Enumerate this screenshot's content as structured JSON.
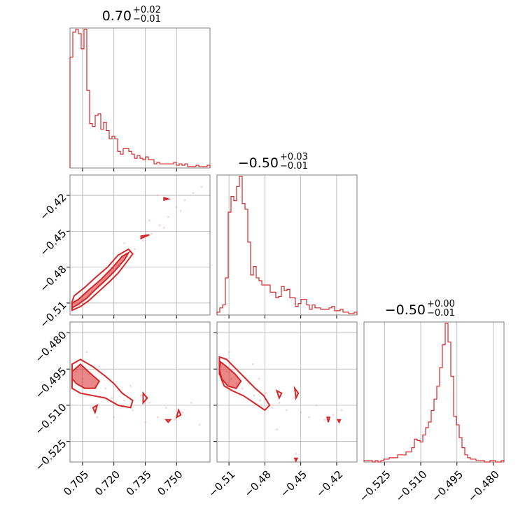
{
  "colors": {
    "accent": "#d62728",
    "grid": "#b0b0b0",
    "frame": "#808080",
    "sample": "#e9a3a8"
  },
  "chart_data": {
    "type": "corner",
    "parameters": [
      {
        "title_value": "0.70",
        "title_plus": "+0.02",
        "title_minus": "−0.01",
        "range": [
          0.699,
          0.766
        ],
        "ticks": [
          0.705,
          0.72,
          0.735,
          0.75
        ],
        "tick_labels": [
          "0.705",
          "0.720",
          "0.735",
          "0.750"
        ]
      },
      {
        "title_value": "−0.50",
        "title_plus": "+0.03",
        "title_minus": "−0.01",
        "range": [
          -0.52,
          -0.403
        ],
        "ticks": [
          -0.51,
          -0.48,
          -0.45,
          -0.42
        ],
        "tick_labels": [
          "−0.51",
          "−0.48",
          "−0.45",
          "−0.42"
        ]
      },
      {
        "title_value": "−0.50",
        "title_plus": "+0.00",
        "title_minus": "−0.01",
        "range": [
          -0.5335,
          -0.4755
        ],
        "ticks": [
          -0.525,
          -0.51,
          -0.495,
          -0.48
        ],
        "tick_labels": [
          "−0.525",
          "−0.510",
          "−0.495",
          "−0.480"
        ]
      }
    ],
    "histograms": [
      {
        "param": 0,
        "edges": [
          0.699,
          0.766
        ],
        "counts": [
          80,
          98,
          100,
          97,
          86,
          100,
          56,
          32,
          30,
          38,
          39,
          28,
          33,
          27,
          21,
          23,
          21,
          12,
          10,
          14,
          14,
          12,
          10,
          7,
          9,
          7,
          6,
          8,
          6,
          6,
          3,
          4,
          3,
          3,
          3,
          3,
          3,
          4,
          2,
          3,
          2,
          3,
          1,
          1,
          1,
          2,
          1,
          1,
          1,
          2
        ]
      },
      {
        "param": 1,
        "edges": [
          -0.52,
          -0.403
        ],
        "counts": [
          2,
          5,
          7,
          26,
          72,
          83,
          80,
          90,
          97,
          78,
          74,
          51,
          28,
          34,
          26,
          24,
          21,
          21,
          21,
          16,
          16,
          12,
          13,
          20,
          17,
          18,
          12,
          12,
          6,
          8,
          11,
          11,
          7,
          4,
          7,
          5,
          5,
          4,
          4,
          4,
          5,
          6,
          3,
          3,
          4,
          2,
          2,
          1,
          1,
          2
        ]
      },
      {
        "param": 2,
        "edges": [
          -0.5335,
          -0.4755
        ],
        "counts": [
          1,
          1,
          1,
          0,
          1,
          0,
          1,
          2,
          2,
          3,
          3,
          3,
          5,
          5,
          5,
          7,
          7,
          10,
          16,
          15,
          14,
          19,
          24,
          28,
          36,
          44,
          53,
          66,
          82,
          97,
          84,
          60,
          32,
          26,
          17,
          10,
          5,
          3,
          2,
          2,
          1,
          1,
          1,
          0,
          0,
          1,
          1,
          0,
          0,
          1
        ]
      }
    ],
    "scatter_pairs": [
      {
        "x": 0,
        "y": 1,
        "points": [
          [
            0.703,
            -0.512
          ],
          [
            0.705,
            -0.508
          ],
          [
            0.708,
            -0.503
          ],
          [
            0.71,
            -0.5
          ],
          [
            0.713,
            -0.495
          ],
          [
            0.716,
            -0.49
          ],
          [
            0.719,
            -0.484
          ],
          [
            0.722,
            -0.478
          ],
          [
            0.726,
            -0.471
          ],
          [
            0.73,
            -0.465
          ],
          [
            0.734,
            -0.458
          ],
          [
            0.738,
            -0.452
          ],
          [
            0.742,
            -0.445
          ],
          [
            0.746,
            -0.438
          ],
          [
            0.75,
            -0.43
          ],
          [
            0.754,
            -0.424
          ],
          [
            0.758,
            -0.418
          ],
          [
            0.762,
            -0.413
          ],
          [
            0.741,
            -0.42
          ],
          [
            0.725,
            -0.46
          ],
          [
            0.715,
            -0.484
          ],
          [
            0.7,
            -0.515
          ],
          [
            0.737,
            -0.441
          ],
          [
            0.744,
            -0.447
          ],
          [
            0.752,
            -0.433
          ]
        ]
      },
      {
        "x": 0,
        "y": 2,
        "points": [
          [
            0.702,
            -0.496
          ],
          [
            0.705,
            -0.499
          ],
          [
            0.708,
            -0.497
          ],
          [
            0.711,
            -0.502
          ],
          [
            0.713,
            -0.494
          ],
          [
            0.716,
            -0.503
          ],
          [
            0.719,
            -0.507
          ],
          [
            0.722,
            -0.504
          ],
          [
            0.725,
            -0.508
          ],
          [
            0.729,
            -0.512
          ],
          [
            0.733,
            -0.506
          ],
          [
            0.737,
            -0.509
          ],
          [
            0.741,
            -0.515
          ],
          [
            0.745,
            -0.511
          ],
          [
            0.749,
            -0.516
          ],
          [
            0.753,
            -0.513
          ],
          [
            0.757,
            -0.509
          ],
          [
            0.761,
            -0.518
          ],
          [
            0.707,
            -0.488
          ],
          [
            0.712,
            -0.515
          ],
          [
            0.72,
            -0.515
          ],
          [
            0.728,
            -0.502
          ],
          [
            0.735,
            -0.517
          ]
        ]
      },
      {
        "x": 1,
        "y": 2,
        "points": [
          [
            -0.515,
            -0.493
          ],
          [
            -0.512,
            -0.496
          ],
          [
            -0.508,
            -0.499
          ],
          [
            -0.504,
            -0.501
          ],
          [
            -0.499,
            -0.503
          ],
          [
            -0.494,
            -0.501
          ],
          [
            -0.489,
            -0.506
          ],
          [
            -0.484,
            -0.508
          ],
          [
            -0.479,
            -0.505
          ],
          [
            -0.474,
            -0.511
          ],
          [
            -0.468,
            -0.509
          ],
          [
            -0.462,
            -0.512
          ],
          [
            -0.456,
            -0.507
          ],
          [
            -0.45,
            -0.513
          ],
          [
            -0.443,
            -0.515
          ],
          [
            -0.437,
            -0.51
          ],
          [
            -0.43,
            -0.516
          ],
          [
            -0.423,
            -0.514
          ],
          [
            -0.416,
            -0.512
          ],
          [
            -0.51,
            -0.488
          ],
          [
            -0.49,
            -0.493
          ],
          [
            -0.47,
            -0.52
          ],
          [
            -0.454,
            -0.53
          ],
          [
            -0.485,
            -0.499
          ]
        ]
      }
    ],
    "contours": [
      {
        "x": 0,
        "y": 1,
        "kind": "fill",
        "points": [
          [
            0.7,
            -0.514
          ],
          [
            0.703,
            -0.511
          ],
          [
            0.707,
            -0.506
          ],
          [
            0.711,
            -0.499
          ],
          [
            0.716,
            -0.491
          ],
          [
            0.72,
            -0.484
          ],
          [
            0.725,
            -0.474
          ],
          [
            0.727,
            -0.468
          ],
          [
            0.724,
            -0.471
          ],
          [
            0.719,
            -0.481
          ],
          [
            0.714,
            -0.49
          ],
          [
            0.708,
            -0.499
          ],
          [
            0.703,
            -0.507
          ],
          [
            0.7,
            -0.51
          ]
        ]
      },
      {
        "x": 0,
        "y": 1,
        "kind": "line",
        "points": [
          [
            0.7,
            -0.516
          ],
          [
            0.704,
            -0.513
          ],
          [
            0.708,
            -0.508
          ],
          [
            0.713,
            -0.5
          ],
          [
            0.718,
            -0.492
          ],
          [
            0.722,
            -0.485
          ],
          [
            0.726,
            -0.476
          ],
          [
            0.729,
            -0.469
          ],
          [
            0.727,
            -0.465
          ],
          [
            0.722,
            -0.47
          ],
          [
            0.717,
            -0.48
          ],
          [
            0.711,
            -0.489
          ],
          [
            0.706,
            -0.497
          ],
          [
            0.701,
            -0.504
          ],
          [
            0.7,
            -0.509
          ]
        ]
      },
      {
        "x": 0,
        "y": 1,
        "kind": "line",
        "points": [
          [
            0.733,
            -0.456
          ],
          [
            0.737,
            -0.453
          ],
          [
            0.733,
            -0.454
          ]
        ]
      },
      {
        "x": 0,
        "y": 1,
        "kind": "line",
        "points": [
          [
            0.744,
            -0.424
          ],
          [
            0.746,
            -0.423
          ],
          [
            0.744,
            -0.422
          ]
        ]
      },
      {
        "x": 0,
        "y": 2,
        "kind": "fill",
        "points": [
          [
            0.7,
            -0.496
          ],
          [
            0.704,
            -0.493
          ],
          [
            0.709,
            -0.497
          ],
          [
            0.713,
            -0.5
          ],
          [
            0.711,
            -0.503
          ],
          [
            0.706,
            -0.503
          ],
          [
            0.702,
            -0.501
          ],
          [
            0.7,
            -0.499
          ]
        ]
      },
      {
        "x": 0,
        "y": 2,
        "kind": "line",
        "points": [
          [
            0.7,
            -0.493
          ],
          [
            0.704,
            -0.491
          ],
          [
            0.71,
            -0.494
          ],
          [
            0.716,
            -0.498
          ],
          [
            0.72,
            -0.501
          ],
          [
            0.724,
            -0.505
          ],
          [
            0.729,
            -0.508
          ],
          [
            0.728,
            -0.511
          ],
          [
            0.722,
            -0.51
          ],
          [
            0.716,
            -0.507
          ],
          [
            0.71,
            -0.506
          ],
          [
            0.704,
            -0.505
          ],
          [
            0.7,
            -0.503
          ]
        ]
      },
      {
        "x": 0,
        "y": 2,
        "kind": "line",
        "points": [
          [
            0.71,
            -0.511
          ],
          [
            0.712,
            -0.51
          ],
          [
            0.711,
            -0.513
          ]
        ]
      },
      {
        "x": 0,
        "y": 2,
        "kind": "line",
        "points": [
          [
            0.734,
            -0.505
          ],
          [
            0.736,
            -0.507
          ],
          [
            0.734,
            -0.509
          ]
        ]
      },
      {
        "x": 0,
        "y": 2,
        "kind": "line",
        "points": [
          [
            0.745,
            -0.516
          ],
          [
            0.747,
            -0.516
          ],
          [
            0.746,
            -0.517
          ]
        ]
      },
      {
        "x": 0,
        "y": 2,
        "kind": "line",
        "points": [
          [
            0.751,
            -0.512
          ],
          [
            0.752,
            -0.514
          ],
          [
            0.75,
            -0.515
          ]
        ]
      },
      {
        "x": 1,
        "y": 2,
        "kind": "fill",
        "points": [
          [
            -0.517,
            -0.492
          ],
          [
            -0.512,
            -0.494
          ],
          [
            -0.505,
            -0.497
          ],
          [
            -0.5,
            -0.5
          ],
          [
            -0.504,
            -0.503
          ],
          [
            -0.511,
            -0.502
          ],
          [
            -0.516,
            -0.499
          ],
          [
            -0.518,
            -0.495
          ]
        ]
      },
      {
        "x": 1,
        "y": 2,
        "kind": "line",
        "points": [
          [
            -0.518,
            -0.49
          ],
          [
            -0.512,
            -0.491
          ],
          [
            -0.504,
            -0.495
          ],
          [
            -0.496,
            -0.499
          ],
          [
            -0.488,
            -0.503
          ],
          [
            -0.481,
            -0.506
          ],
          [
            -0.476,
            -0.51
          ],
          [
            -0.48,
            -0.512
          ],
          [
            -0.489,
            -0.509
          ],
          [
            -0.498,
            -0.506
          ],
          [
            -0.507,
            -0.504
          ],
          [
            -0.514,
            -0.502
          ],
          [
            -0.518,
            -0.497
          ]
        ]
      },
      {
        "x": 1,
        "y": 2,
        "kind": "line",
        "points": [
          [
            -0.47,
            -0.504
          ],
          [
            -0.466,
            -0.505
          ],
          [
            -0.468,
            -0.507
          ]
        ]
      },
      {
        "x": 1,
        "y": 2,
        "kind": "line",
        "points": [
          [
            -0.455,
            -0.503
          ],
          [
            -0.452,
            -0.505
          ],
          [
            -0.454,
            -0.507
          ]
        ]
      },
      {
        "x": 1,
        "y": 2,
        "kind": "line",
        "points": [
          [
            -0.428,
            -0.515
          ],
          [
            -0.426,
            -0.515
          ],
          [
            -0.427,
            -0.517
          ]
        ]
      },
      {
        "x": 1,
        "y": 2,
        "kind": "line",
        "points": [
          [
            -0.419,
            -0.516
          ],
          [
            -0.417,
            -0.516
          ],
          [
            -0.418,
            -0.517
          ]
        ]
      },
      {
        "x": 1,
        "y": 2,
        "kind": "line",
        "points": [
          [
            -0.455,
            -0.532
          ],
          [
            -0.453,
            -0.532
          ],
          [
            -0.454,
            -0.533
          ]
        ]
      }
    ]
  }
}
